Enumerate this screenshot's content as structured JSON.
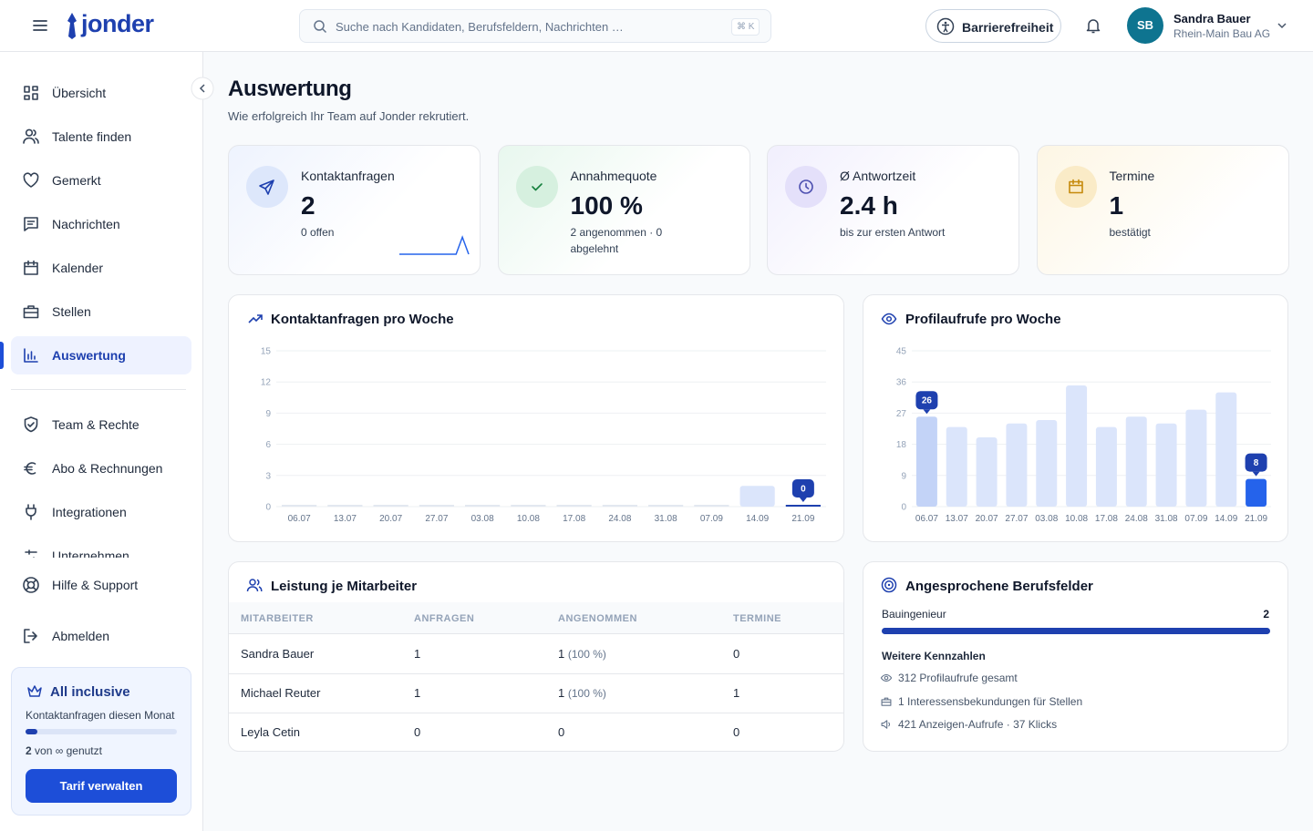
{
  "header": {
    "logo": "jonder",
    "search_placeholder": "Suche nach Kandidaten, Berufsfeldern, Nachrichten …",
    "search_shortcut": "⌘ K",
    "accessibility": "Barrierefreiheit",
    "user_initials": "SB",
    "user_name": "Sandra Bauer",
    "user_company": "Rhein-Main Bau AG"
  },
  "sidebar": {
    "nav": [
      "Übersicht",
      "Talente finden",
      "Gemerkt",
      "Nachrichten",
      "Kalender",
      "Stellen",
      "Auswertung"
    ],
    "active": 6,
    "nav_more": [
      "Team & Rechte",
      "Abo & Rechnungen",
      "Integrationen",
      "Unternehmen"
    ],
    "nav_bottom": [
      "Hilfe & Support",
      "Abmelden"
    ],
    "plan": {
      "title": "All inclusive",
      "label": "Kontaktanfragen diesen Monat",
      "used": "2",
      "usage": "von ∞ genutzt",
      "button": "Tarif verwalten"
    }
  },
  "page": {
    "title": "Auswertung",
    "subtitle": "Wie erfolgreich Ihr Team auf Jonder rekrutiert."
  },
  "kpis": [
    {
      "label": "Kontaktanfragen",
      "value": "2",
      "note": "0 offen"
    },
    {
      "label": "Annahmequote",
      "value": "100 %",
      "note": "2 angenommen · 0 abgelehnt"
    },
    {
      "label": "Ø Antwortzeit",
      "value": "2.4 h",
      "note": "bis zur ersten Antwort"
    },
    {
      "label": "Termine",
      "value": "1",
      "note": "bestätigt"
    }
  ],
  "chart_data": [
    {
      "type": "bar",
      "title": "Kontaktanfragen pro Woche",
      "categories": [
        "06.07",
        "13.07",
        "20.07",
        "27.07",
        "03.08",
        "10.08",
        "17.08",
        "24.08",
        "31.08",
        "07.09",
        "14.09",
        "21.09"
      ],
      "values": [
        0,
        0,
        0,
        0,
        0,
        0,
        0,
        0,
        0,
        0,
        2,
        0
      ],
      "value_labels": [
        null,
        null,
        null,
        null,
        null,
        null,
        null,
        null,
        null,
        null,
        null,
        "0"
      ],
      "bar_colors": [
        "#e2e8f0",
        "#e2e8f0",
        "#e2e8f0",
        "#e2e8f0",
        "#e2e8f0",
        "#e2e8f0",
        "#e2e8f0",
        "#e2e8f0",
        "#e2e8f0",
        "#e2e8f0",
        "#dbe5fb",
        "#1e40af"
      ],
      "ylim": [
        0,
        15
      ],
      "yticks": [
        0,
        3,
        6,
        9,
        12,
        15
      ],
      "grid": true
    },
    {
      "type": "bar",
      "title": "Profilaufrufe pro Woche",
      "categories": [
        "06.07",
        "13.07",
        "20.07",
        "27.07",
        "03.08",
        "10.08",
        "17.08",
        "24.08",
        "31.08",
        "07.09",
        "14.09",
        "21.09"
      ],
      "values": [
        26,
        23,
        20,
        24,
        25,
        35,
        23,
        26,
        24,
        28,
        33,
        8
      ],
      "value_labels": [
        "26",
        null,
        null,
        null,
        null,
        null,
        null,
        null,
        null,
        null,
        null,
        "8"
      ],
      "bar_colors": [
        "#c3d3f7",
        "#dbe5fb",
        "#dbe5fb",
        "#dbe5fb",
        "#dbe5fb",
        "#dbe5fb",
        "#dbe5fb",
        "#dbe5fb",
        "#dbe5fb",
        "#dbe5fb",
        "#dbe5fb",
        "#2563eb"
      ],
      "ylim": [
        0,
        45
      ],
      "yticks": [
        0,
        9,
        18,
        27,
        36,
        45
      ],
      "grid": true
    }
  ],
  "table": {
    "title": "Leistung je Mitarbeiter",
    "columns": [
      "MITARBEITER",
      "ANFRAGEN",
      "ANGENOMMEN",
      "TERMINE"
    ],
    "rows": [
      {
        "name": "Sandra Bauer",
        "requests": "1",
        "accepted": "1",
        "accepted_share": "(100 %)",
        "appointments": "0"
      },
      {
        "name": "Michael Reuter",
        "requests": "1",
        "accepted": "1",
        "accepted_share": "(100 %)",
        "appointments": "1"
      },
      {
        "name": "Leyla Cetin",
        "requests": "0",
        "accepted": "0",
        "accepted_share": null,
        "appointments": "0"
      }
    ]
  },
  "fields": {
    "title": "Angesprochene Berufsfelder",
    "items": [
      {
        "name": "Bauingenieur",
        "count": 2
      }
    ],
    "more_title": "Weitere Kennzahlen",
    "stats": [
      "312 Profilaufrufe gesamt",
      "1 Interessensbekundungen für Stellen",
      "421 Anzeigen-Aufrufe · 37 Klicks"
    ]
  }
}
